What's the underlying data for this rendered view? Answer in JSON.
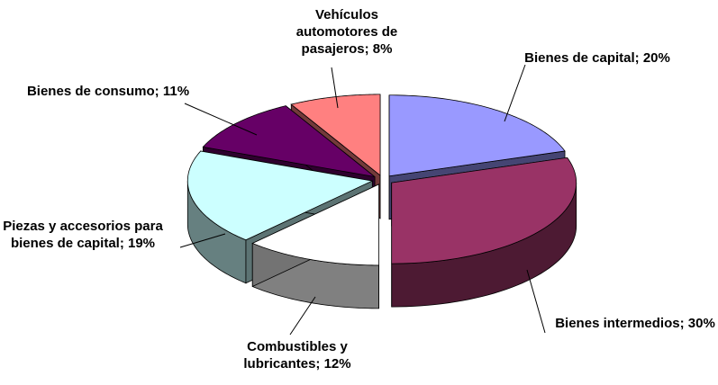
{
  "chart_data": {
    "type": "pie3d",
    "values": [
      20,
      30,
      12,
      19,
      11,
      8
    ],
    "value_labels": [
      "Bienes de capital; 20%",
      "Bienes intermedios; 30%",
      "Combustibles y lubricantes; 12%",
      "Piezas y accesorios para bienes de capital; 19%",
      "Bienes de consumo; 11%",
      "Vehículos automotores de pasajeros; 8%"
    ],
    "colors": [
      "#9999ff",
      "#993366",
      "#ffffff",
      "#ccffff",
      "#660066",
      "#ff8080"
    ]
  }
}
